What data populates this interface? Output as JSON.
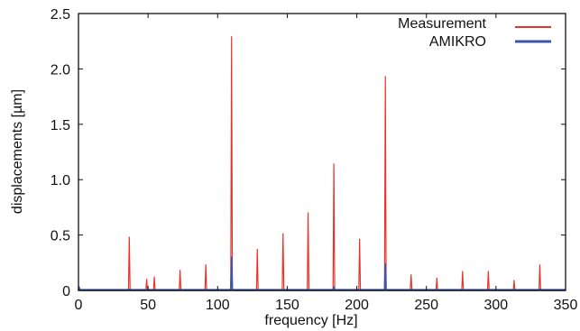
{
  "chart_data": {
    "type": "line",
    "xlabel": "frequency [Hz]",
    "ylabel": "displacements [µm]",
    "xlim": [
      0,
      350
    ],
    "ylim": [
      0,
      2.5
    ],
    "xticks": [
      0,
      50,
      100,
      150,
      200,
      250,
      300,
      350
    ],
    "yticks": [
      0,
      0.5,
      1,
      1.5,
      2,
      2.5
    ],
    "xtick_labels": [
      "0",
      "50",
      "100",
      "150",
      "200",
      "250",
      "300",
      "350"
    ],
    "ytick_labels": [
      "0",
      "0.5",
      "1.0",
      "1.5",
      "2.0",
      "2.5"
    ],
    "grid": false,
    "legend_position": "top-right",
    "series": [
      {
        "name": "Measurement",
        "color": "#e8332a",
        "peaks": [
          {
            "x": 36.5,
            "y": 0.48
          },
          {
            "x": 49,
            "y": 0.1
          },
          {
            "x": 54.5,
            "y": 0.12
          },
          {
            "x": 73,
            "y": 0.18
          },
          {
            "x": 91.5,
            "y": 0.23
          },
          {
            "x": 110,
            "y": 2.29
          },
          {
            "x": 128.5,
            "y": 0.37
          },
          {
            "x": 147,
            "y": 0.51
          },
          {
            "x": 165,
            "y": 0.7
          },
          {
            "x": 183.5,
            "y": 1.14
          },
          {
            "x": 202,
            "y": 0.46
          },
          {
            "x": 220.5,
            "y": 1.93
          },
          {
            "x": 239,
            "y": 0.14
          },
          {
            "x": 257.5,
            "y": 0.11
          },
          {
            "x": 276,
            "y": 0.17
          },
          {
            "x": 294.5,
            "y": 0.17
          },
          {
            "x": 313,
            "y": 0.09
          },
          {
            "x": 331.5,
            "y": 0.23
          }
        ]
      },
      {
        "name": "AMIKRO",
        "color": "#3b56a8",
        "peaks": [
          {
            "x": 0.5,
            "y": 0.03
          },
          {
            "x": 36.5,
            "y": 0.01
          },
          {
            "x": 110,
            "y": 0.3
          },
          {
            "x": 183.5,
            "y": 0.03
          },
          {
            "x": 220.5,
            "y": 0.24
          },
          {
            "x": 331.5,
            "y": 0.01
          }
        ]
      }
    ]
  }
}
